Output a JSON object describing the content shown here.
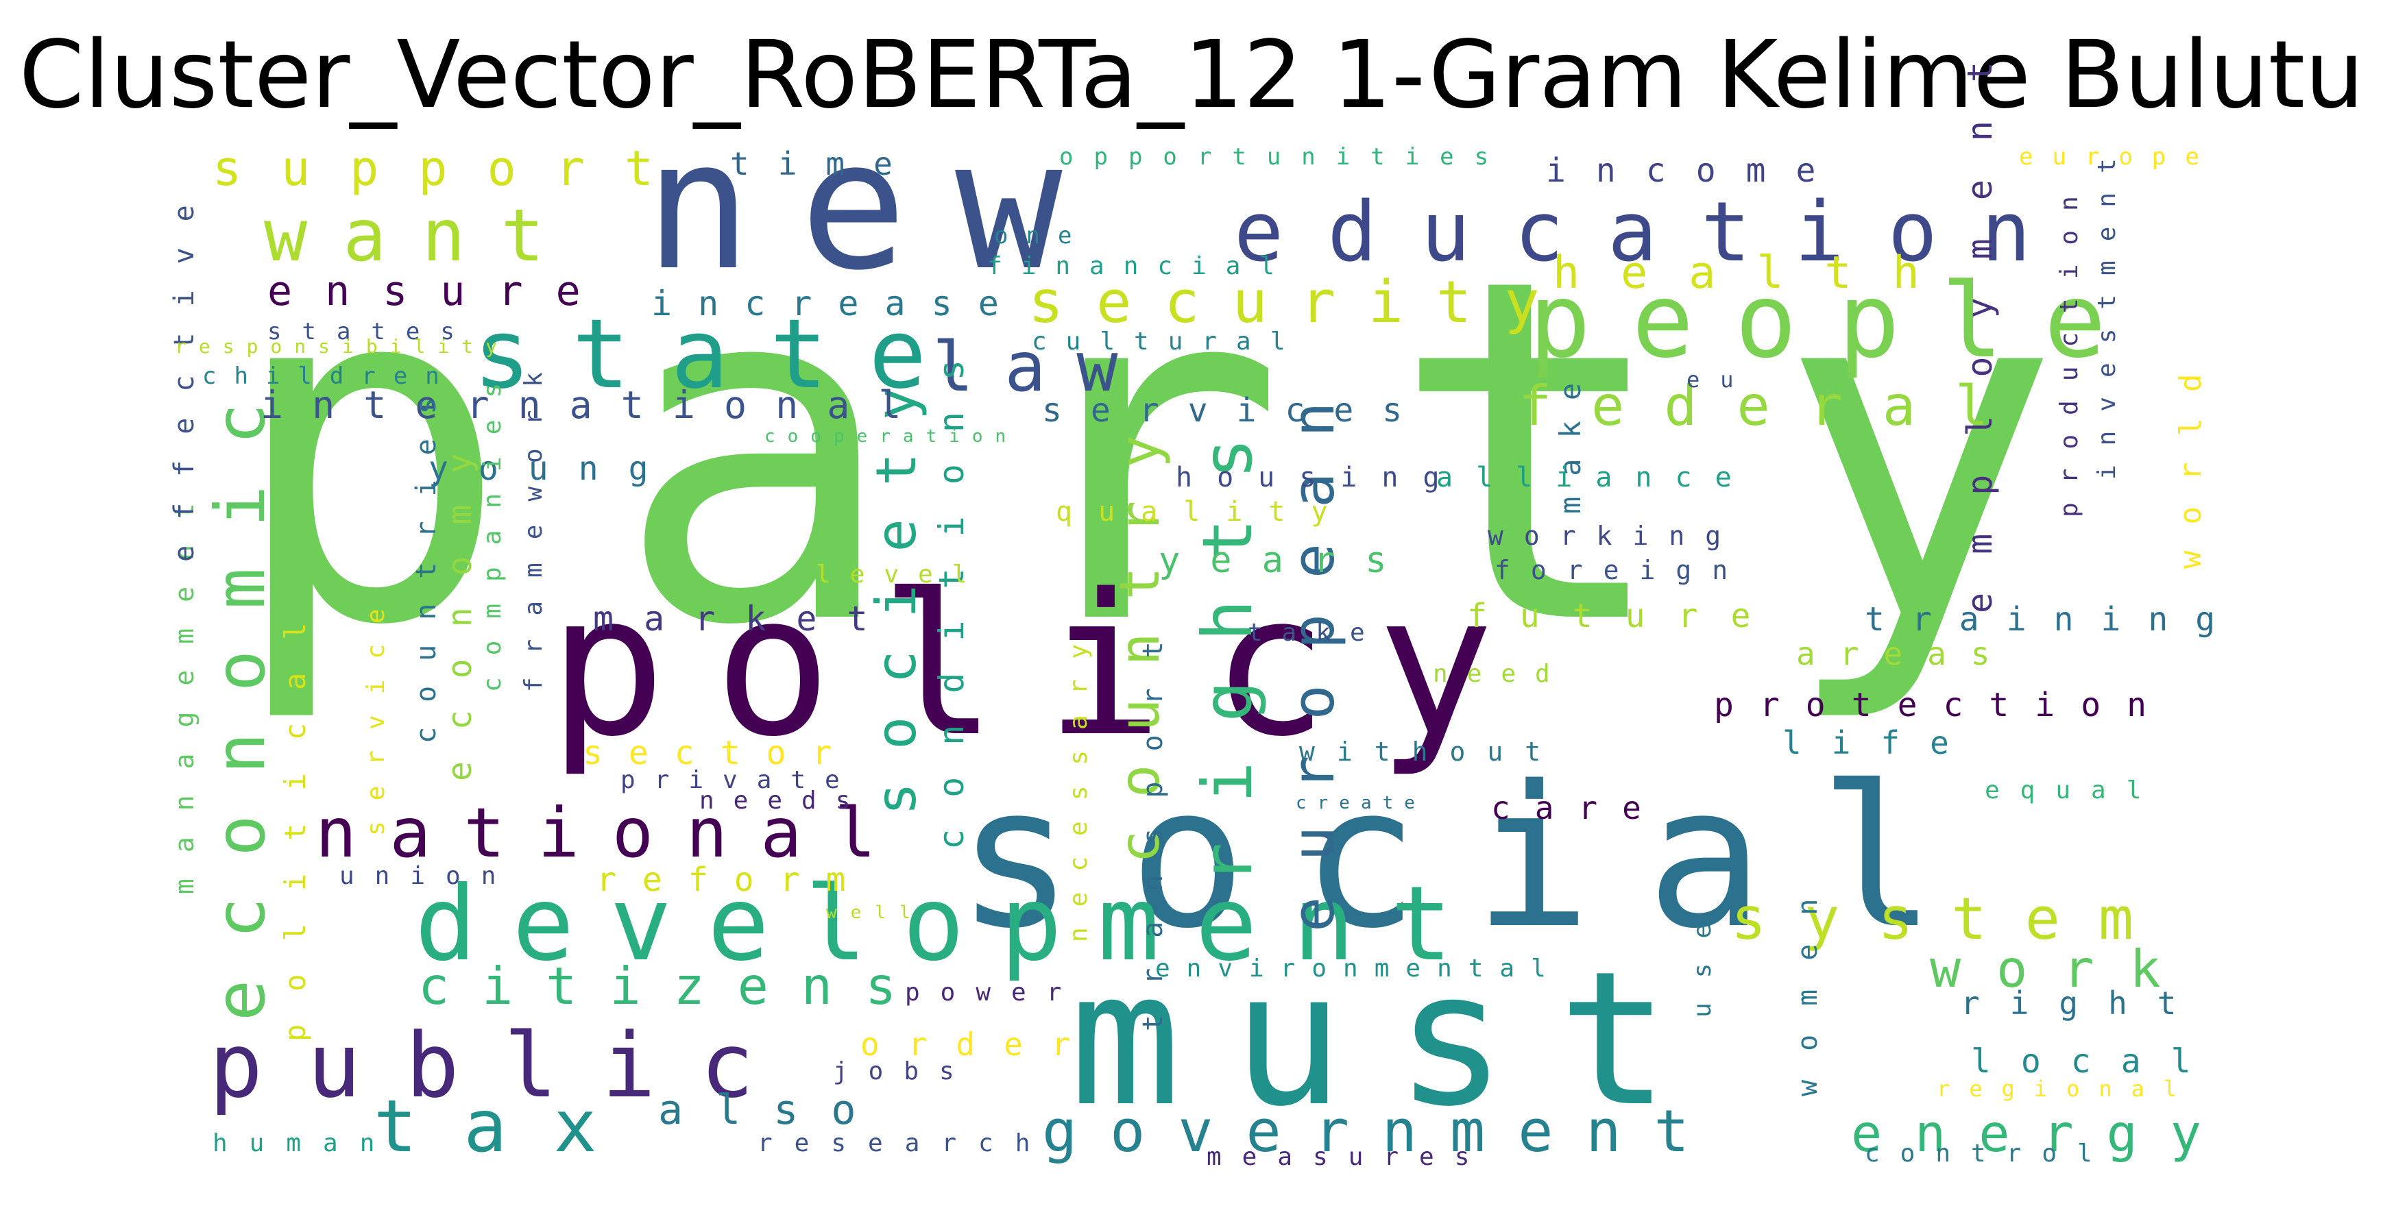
{
  "title": "Cluster_Vector_RoBERTa_12 1-Gram Kelime Bulutu",
  "words": [
    {
      "text": "party",
      "color": "#6ece58"
    },
    {
      "text": "new",
      "color": "#3b528b"
    },
    {
      "text": "policy",
      "color": "#440154"
    },
    {
      "text": "social",
      "color": "#2c728e"
    },
    {
      "text": "must",
      "color": "#21918c"
    },
    {
      "text": "education",
      "color": "#3e4989"
    },
    {
      "text": "people",
      "color": "#7ad151"
    },
    {
      "text": "development",
      "color": "#28ae80"
    },
    {
      "text": "public",
      "color": "#482878"
    },
    {
      "text": "state",
      "color": "#1f9e89"
    },
    {
      "text": "economic",
      "color": "#5ec962"
    },
    {
      "text": "national",
      "color": "#440154"
    },
    {
      "text": "rights",
      "color": "#35b779"
    },
    {
      "text": "want",
      "color": "#addc30"
    },
    {
      "text": "law",
      "color": "#3b528b"
    },
    {
      "text": "european",
      "color": "#31688e"
    },
    {
      "text": "security",
      "color": "#c8e020"
    },
    {
      "text": "tax",
      "color": "#21918c"
    },
    {
      "text": "government",
      "color": "#26828e"
    },
    {
      "text": "system",
      "color": "#bddf26"
    },
    {
      "text": "country",
      "color": "#90d743"
    },
    {
      "text": "society",
      "color": "#22a884"
    },
    {
      "text": "federal",
      "color": "#95d840"
    },
    {
      "text": "citizens",
      "color": "#35b779"
    },
    {
      "text": "work",
      "color": "#5ec962"
    },
    {
      "text": "energy",
      "color": "#35b779"
    },
    {
      "text": "health",
      "color": "#d2e21b"
    },
    {
      "text": "employment",
      "color": "#46327e"
    },
    {
      "text": "support",
      "color": "#d2e21b"
    },
    {
      "text": "ensure",
      "color": "#440154"
    },
    {
      "text": "conditions",
      "color": "#1fa187"
    },
    {
      "text": "also",
      "color": "#2a788e"
    },
    {
      "text": "economy",
      "color": "#93d741"
    },
    {
      "text": "international",
      "color": "#3b528b"
    },
    {
      "text": "services",
      "color": "#31688e"
    },
    {
      "text": "protection",
      "color": "#440154"
    },
    {
      "text": "training",
      "color": "#2d708e"
    },
    {
      "text": "future",
      "color": "#addc30"
    },
    {
      "text": "market",
      "color": "#443983"
    },
    {
      "text": "years",
      "color": "#4ac16d"
    },
    {
      "text": "young",
      "color": "#2c728e"
    },
    {
      "text": "increase",
      "color": "#2a788e"
    },
    {
      "text": "income",
      "color": "#414487"
    },
    {
      "text": "time",
      "color": "#31688e"
    },
    {
      "text": "sector",
      "color": "#fde725"
    },
    {
      "text": "reform",
      "color": "#d8e219"
    },
    {
      "text": "order",
      "color": "#fde725"
    },
    {
      "text": "local",
      "color": "#238a8d"
    },
    {
      "text": "right",
      "color": "#2c728e"
    },
    {
      "text": "life",
      "color": "#26828e"
    },
    {
      "text": "areas",
      "color": "#a2da37"
    },
    {
      "text": "world",
      "color": "#fde725"
    },
    {
      "text": "care",
      "color": "#440154"
    },
    {
      "text": "political",
      "color": "#d8e219"
    },
    {
      "text": "women",
      "color": "#2a788e"
    },
    {
      "text": "make",
      "color": "#2c728e"
    },
    {
      "text": "transport",
      "color": "#2f6b8e"
    },
    {
      "text": "quality",
      "color": "#c8e020"
    },
    {
      "text": "housing",
      "color": "#3e4989"
    },
    {
      "text": "alliance",
      "color": "#1fa187"
    },
    {
      "text": "working",
      "color": "#3e4989"
    },
    {
      "text": "foreign",
      "color": "#3b528b"
    },
    {
      "text": "countries",
      "color": "#2c728e"
    },
    {
      "text": "companies",
      "color": "#52c569"
    },
    {
      "text": "framework",
      "color": "#3b528b"
    },
    {
      "text": "management",
      "color": "#5ec962"
    },
    {
      "text": "effective",
      "color": "#3b528b"
    },
    {
      "text": "production",
      "color": "#46327e"
    },
    {
      "text": "investment",
      "color": "#3b528b"
    },
    {
      "text": "financial",
      "color": "#1f9e89"
    },
    {
      "text": "cultural",
      "color": "#26828e"
    },
    {
      "text": "states",
      "color": "#3b528b"
    },
    {
      "text": "children",
      "color": "#26828e"
    },
    {
      "text": "responsibility",
      "color": "#b5de2b"
    },
    {
      "text": "opportunities",
      "color": "#2fb47c"
    },
    {
      "text": "one",
      "color": "#26828e"
    },
    {
      "text": "europe",
      "color": "#fde725"
    },
    {
      "text": "eu",
      "color": "#3b528b"
    },
    {
      "text": "cooperation",
      "color": "#4ac16d"
    },
    {
      "text": "level",
      "color": "#b5de2b"
    },
    {
      "text": "take",
      "color": "#3b528b"
    },
    {
      "text": "need",
      "color": "#a2da37"
    },
    {
      "text": "without",
      "color": "#2a788e"
    },
    {
      "text": "create",
      "color": "#2c728e"
    },
    {
      "text": "equal",
      "color": "#35b779"
    },
    {
      "text": "private",
      "color": "#414487"
    },
    {
      "text": "needs",
      "color": "#482878"
    },
    {
      "text": "union",
      "color": "#3e4989"
    },
    {
      "text": "well",
      "color": "#b5de2b"
    },
    {
      "text": "power",
      "color": "#482878"
    },
    {
      "text": "jobs",
      "color": "#414487"
    },
    {
      "text": "research",
      "color": "#3b528b"
    },
    {
      "text": "human",
      "color": "#1fa187"
    },
    {
      "text": "measures",
      "color": "#482878"
    },
    {
      "text": "control",
      "color": "#2a788e"
    },
    {
      "text": "regional",
      "color": "#fde725"
    },
    {
      "text": "environmental",
      "color": "#21918c"
    },
    {
      "text": "necessary",
      "color": "#c8e020"
    },
    {
      "text": "use",
      "color": "#2a788e"
    },
    {
      "text": "service",
      "color": "#e5e419"
    }
  ]
}
